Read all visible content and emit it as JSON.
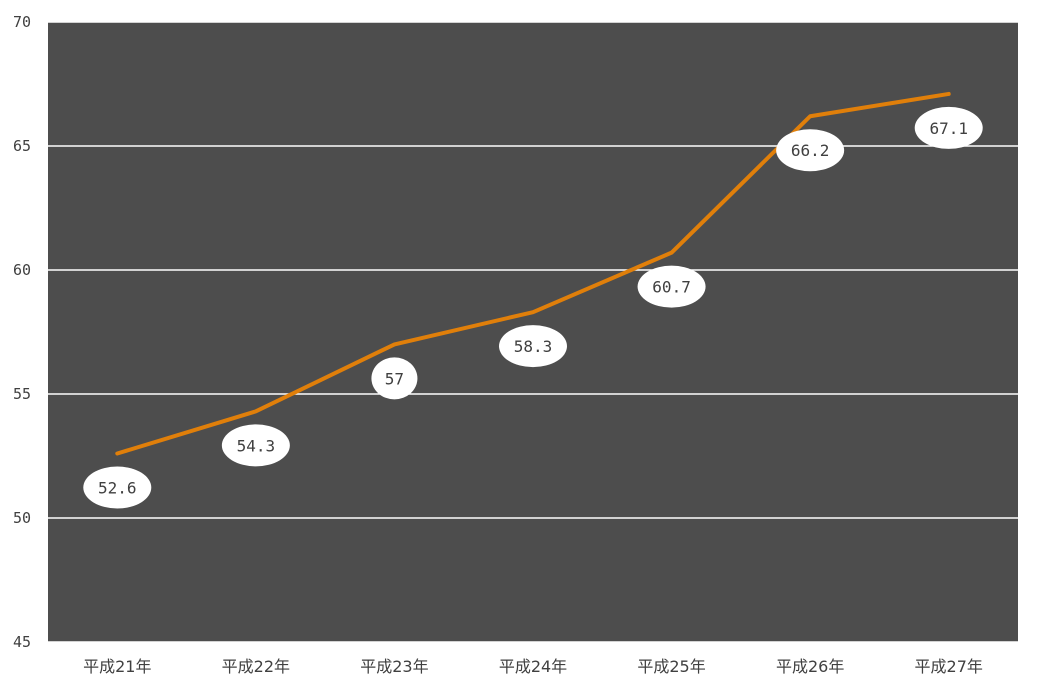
{
  "chart_data": {
    "type": "line",
    "categories": [
      "平成21年",
      "平成22年",
      "平成23年",
      "平成24年",
      "平成25年",
      "平成26年",
      "平成27年"
    ],
    "series": [
      {
        "values": [
          52.6,
          54.3,
          57,
          58.3,
          60.7,
          66.2,
          67.1
        ]
      }
    ],
    "data_labels": [
      "52.6",
      "54.3",
      "57",
      "58.3",
      "60.7",
      "66.2",
      "67.1"
    ],
    "y_ticks": [
      "45",
      "50",
      "55",
      "60",
      "65",
      "70"
    ],
    "ylim": [
      45,
      70
    ],
    "grid": true,
    "legend": "none",
    "colors": {
      "plot_background": "#4d4d4d",
      "line": "#e07f0a",
      "gridline": "#ffffff",
      "label_bubble": "#ffffff",
      "text": "#404040"
    }
  }
}
